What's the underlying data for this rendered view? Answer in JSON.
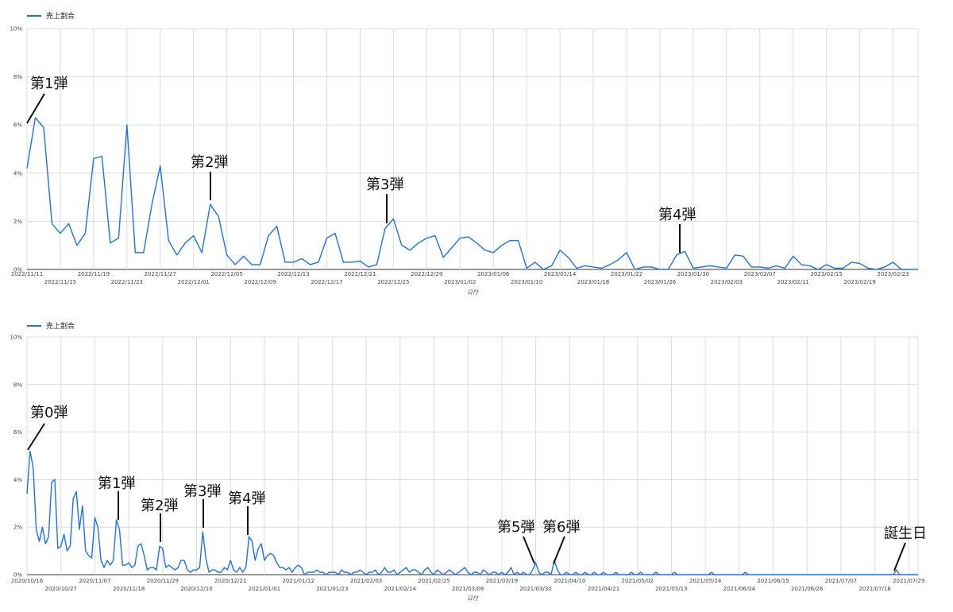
{
  "chart_data": [
    {
      "type": "line",
      "legend": {
        "label": "売上割合",
        "position": "top-left"
      },
      "xlabel": "日付",
      "ylim": [
        0,
        10
      ],
      "y_ticks": [
        "0%",
        "2%",
        "4%",
        "6%",
        "8%",
        "10%"
      ],
      "grid": true,
      "color": "#1a73e8",
      "x_ticks": [
        {
          "label": "2022/11/11",
          "row": 0,
          "i": 0
        },
        {
          "label": "2022/11/15",
          "row": 1,
          "i": 4
        },
        {
          "label": "2022/11/19",
          "row": 0,
          "i": 8
        },
        {
          "label": "2022/11/23",
          "row": 1,
          "i": 12
        },
        {
          "label": "2022/11/27",
          "row": 0,
          "i": 16
        },
        {
          "label": "2022/12/01",
          "row": 1,
          "i": 20
        },
        {
          "label": "2022/12/05",
          "row": 0,
          "i": 24
        },
        {
          "label": "2022/12/09",
          "row": 1,
          "i": 28
        },
        {
          "label": "2022/12/13",
          "row": 0,
          "i": 32
        },
        {
          "label": "2022/12/17",
          "row": 1,
          "i": 36
        },
        {
          "label": "2022/12/21",
          "row": 0,
          "i": 40
        },
        {
          "label": "2022/12/25",
          "row": 1,
          "i": 44
        },
        {
          "label": "2022/12/29",
          "row": 0,
          "i": 48
        },
        {
          "label": "2023/01/02",
          "row": 1,
          "i": 52
        },
        {
          "label": "2023/01/06",
          "row": 0,
          "i": 56
        },
        {
          "label": "2023/01/10",
          "row": 1,
          "i": 60
        },
        {
          "label": "2023/01/14",
          "row": 0,
          "i": 64
        },
        {
          "label": "2023/01/18",
          "row": 1,
          "i": 68
        },
        {
          "label": "2023/01/22",
          "row": 0,
          "i": 72
        },
        {
          "label": "2023/01/26",
          "row": 1,
          "i": 76
        },
        {
          "label": "2023/01/30",
          "row": 0,
          "i": 80
        },
        {
          "label": "2023/02/03",
          "row": 1,
          "i": 84
        },
        {
          "label": "2023/02/07",
          "row": 0,
          "i": 88
        },
        {
          "label": "2023/02/11",
          "row": 1,
          "i": 92
        },
        {
          "label": "2023/02/15",
          "row": 0,
          "i": 96
        },
        {
          "label": "2023/02/19",
          "row": 1,
          "i": 100
        },
        {
          "label": "2023/02/23",
          "row": 0,
          "i": 104
        }
      ],
      "series": [
        {
          "x_start": "2022/11/11",
          "values": [
            4.2,
            6.3,
            5.9,
            1.9,
            1.5,
            1.9,
            1.0,
            1.5,
            4.6,
            4.7,
            1.1,
            1.3,
            6.0,
            0.7,
            0.7,
            2.7,
            4.3,
            1.2,
            0.6,
            1.1,
            1.4,
            0.7,
            2.7,
            2.2,
            0.6,
            0.2,
            0.55,
            0.2,
            0.2,
            1.4,
            1.8,
            0.3,
            0.3,
            0.45,
            0.2,
            0.3,
            1.3,
            1.5,
            0.3,
            0.3,
            0.35,
            0.1,
            0.2,
            1.7,
            2.1,
            1.0,
            0.8,
            1.1,
            1.3,
            1.4,
            0.5,
            0.9,
            1.3,
            1.35,
            1.1,
            0.8,
            0.7,
            1.0,
            1.2,
            1.2,
            0.05,
            0.3,
            0.0,
            0.15,
            0.8,
            0.5,
            0.05,
            0.15,
            0.1,
            0.05,
            0.2,
            0.4,
            0.7,
            0.0,
            0.1,
            0.1,
            0.0,
            0.0,
            0.6,
            0.75,
            0.05,
            0.1,
            0.15,
            0.1,
            0.05,
            0.6,
            0.55,
            0.1,
            0.1,
            0.05,
            0.15,
            0.05,
            0.55,
            0.2,
            0.15,
            0.0,
            0.2,
            0.05,
            0.05,
            0.3,
            0.25,
            0.05,
            0.0,
            0.1,
            0.3,
            0.0,
            0.0,
            0.0
          ]
        }
      ],
      "annotations": [
        {
          "label": "第1弾",
          "i": 0
        },
        {
          "label": "第2弾",
          "i": 22
        },
        {
          "label": "第3弾",
          "i": 43
        },
        {
          "label": "第4弾",
          "i": 78
        }
      ]
    },
    {
      "type": "line",
      "legend": {
        "label": "売上割合",
        "position": "top-left"
      },
      "xlabel": "日付",
      "ylim": [
        0,
        10
      ],
      "y_ticks": [
        "0%",
        "2%",
        "4%",
        "6%",
        "8%",
        "10%"
      ],
      "grid": true,
      "color": "#1a73e8",
      "x_ticks": [
        {
          "label": "2020/10/16",
          "row": 0,
          "i": 0
        },
        {
          "label": "2020/10/27",
          "row": 1,
          "i": 11
        },
        {
          "label": "2020/11/07",
          "row": 0,
          "i": 22
        },
        {
          "label": "2020/11/18",
          "row": 1,
          "i": 33
        },
        {
          "label": "2020/11/29",
          "row": 0,
          "i": 44
        },
        {
          "label": "2020/12/10",
          "row": 1,
          "i": 55
        },
        {
          "label": "2020/12/21",
          "row": 0,
          "i": 66
        },
        {
          "label": "2021/01/01",
          "row": 1,
          "i": 77
        },
        {
          "label": "2021/01/12",
          "row": 0,
          "i": 88
        },
        {
          "label": "2021/01/23",
          "row": 1,
          "i": 99
        },
        {
          "label": "2021/02/03",
          "row": 0,
          "i": 110
        },
        {
          "label": "2021/02/14",
          "row": 1,
          "i": 121
        },
        {
          "label": "2021/02/25",
          "row": 0,
          "i": 132
        },
        {
          "label": "2021/03/08",
          "row": 1,
          "i": 143
        },
        {
          "label": "2021/03/19",
          "row": 0,
          "i": 154
        },
        {
          "label": "2021/03/30",
          "row": 1,
          "i": 165
        },
        {
          "label": "2021/04/10",
          "row": 0,
          "i": 176
        },
        {
          "label": "2021/04/21",
          "row": 1,
          "i": 187
        },
        {
          "label": "2021/05/02",
          "row": 0,
          "i": 198
        },
        {
          "label": "2021/05/13",
          "row": 1,
          "i": 209
        },
        {
          "label": "2021/05/24",
          "row": 0,
          "i": 220
        },
        {
          "label": "2021/06/04",
          "row": 1,
          "i": 231
        },
        {
          "label": "2021/06/15",
          "row": 0,
          "i": 242
        },
        {
          "label": "2021/06/26",
          "row": 1,
          "i": 253
        },
        {
          "label": "2021/07/07",
          "row": 0,
          "i": 264
        },
        {
          "label": "2021/07/18",
          "row": 1,
          "i": 275
        },
        {
          "label": "2021/07/29",
          "row": 0,
          "i": 286
        }
      ],
      "series": [
        {
          "x_start": "2020/10/16",
          "values": [
            3.4,
            5.2,
            4.5,
            1.9,
            1.4,
            2.0,
            1.3,
            1.6,
            3.9,
            4.0,
            1.1,
            1.2,
            1.7,
            1.0,
            1.2,
            3.2,
            3.5,
            1.9,
            2.9,
            1.0,
            0.8,
            0.7,
            2.4,
            2.0,
            0.6,
            0.3,
            0.6,
            0.4,
            0.6,
            2.3,
            1.9,
            0.4,
            0.4,
            0.5,
            0.3,
            0.4,
            1.2,
            1.3,
            0.8,
            0.2,
            0.3,
            0.3,
            0.2,
            1.2,
            1.1,
            0.3,
            0.4,
            0.3,
            0.2,
            0.3,
            0.6,
            0.6,
            0.2,
            0.1,
            0.2,
            0.2,
            0.3,
            1.8,
            0.7,
            0.1,
            0.2,
            0.2,
            0.1,
            0.1,
            0.3,
            0.2,
            0.6,
            0.2,
            0.1,
            0.3,
            0.1,
            0.3,
            1.6,
            1.4,
            0.6,
            1.1,
            1.3,
            0.6,
            0.8,
            0.9,
            0.8,
            0.5,
            0.3,
            0.3,
            0.2,
            0.3,
            0.1,
            0.3,
            0.4,
            0.3,
            0.0,
            0.1,
            0.1,
            0.1,
            0.2,
            0.1,
            0.1,
            0.0,
            0.1,
            0.1,
            0.1,
            0.0,
            0.2,
            0.1,
            0.1,
            0.0,
            0.1,
            0.1,
            0.2,
            0.1,
            0.0,
            0.1,
            0.1,
            0.2,
            0.0,
            0.1,
            0.3,
            0.1,
            0.1,
            0.2,
            0.0,
            0.1,
            0.2,
            0.3,
            0.1,
            0.2,
            0.2,
            0.1,
            0.0,
            0.2,
            0.3,
            0.1,
            0.0,
            0.2,
            0.1,
            0.0,
            0.1,
            0.2,
            0.1,
            0.0,
            0.1,
            0.2,
            0.3,
            0.1,
            0.0,
            0.1,
            0.1,
            0.0,
            0.2,
            0.1,
            0.0,
            0.1,
            0.1,
            0.0,
            0.1,
            0.0,
            0.1,
            0.3,
            0.0,
            0.1,
            0.0,
            0.1,
            0.0,
            0.0,
            0.2,
            0.5,
            0.1,
            0.0,
            0.1,
            0.1,
            0.0,
            0.6,
            0.2,
            0.0,
            0.0,
            0.1,
            0.0,
            0.0,
            0.1,
            0.0,
            0.0,
            0.1,
            0.0,
            0.0,
            0.1,
            0.0,
            0.0,
            0.1,
            0.0,
            0.0,
            0.0,
            0.1,
            0.0,
            0.0,
            0.0,
            0.0,
            0.1,
            0.0,
            0.0,
            0.1,
            0.0,
            0.0,
            0.0,
            0.0,
            0.1,
            0.0,
            0.0,
            0.0,
            0.0,
            0.0,
            0.1,
            0.0,
            0.0,
            0.0,
            0.0,
            0.0,
            0.0,
            0.0,
            0.0,
            0.0,
            0.0,
            0.0,
            0.1,
            0.0,
            0.0,
            0.0,
            0.0,
            0.0,
            0.0,
            0.0,
            0.0,
            0.0,
            0.0,
            0.1,
            0.0,
            0.0,
            0.0,
            0.0,
            0.0,
            0.0,
            0.0,
            0.0,
            0.0,
            0.0,
            0.0,
            0.0,
            0.0,
            0.0,
            0.0,
            0.0,
            0.0,
            0.0,
            0.0,
            0.0,
            0.0,
            0.0,
            0.0,
            0.0,
            0.0,
            0.0,
            0.0,
            0.0,
            0.0,
            0.0,
            0.0,
            0.0,
            0.0,
            0.0,
            0.0,
            0.0,
            0.0,
            0.0,
            0.0,
            0.0,
            0.0,
            0.0,
            0.0,
            0.0,
            0.0,
            0.0,
            0.0,
            0.0,
            0.2,
            0.0,
            0.0,
            0.0,
            0.0,
            0.0,
            0.0,
            0.0
          ]
        }
      ],
      "annotations": [
        {
          "label": "第0弾",
          "i": 0
        },
        {
          "label": "第1弾",
          "i": 31
        },
        {
          "label": "第2弾",
          "i": 44
        },
        {
          "label": "第3弾",
          "i": 57
        },
        {
          "label": "第4弾",
          "i": 72
        },
        {
          "label": "第5弾",
          "i": 165
        },
        {
          "label": "第6弾",
          "i": 170
        },
        {
          "label": "誕生日",
          "i": 278
        }
      ]
    }
  ]
}
